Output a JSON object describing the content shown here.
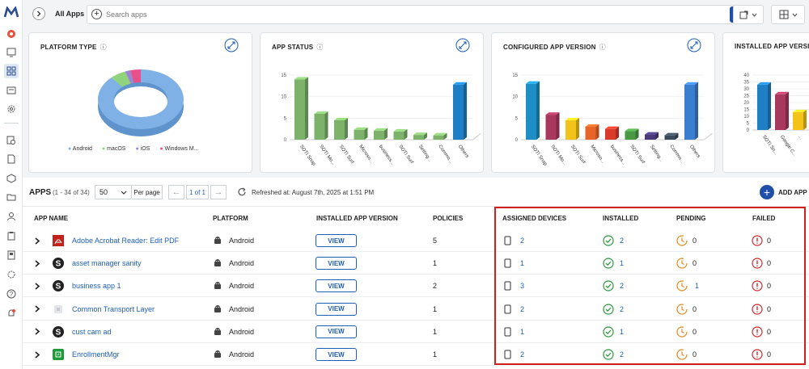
{
  "toolbar": {
    "all_apps": "All Apps",
    "search_placeholder": "Search apps"
  },
  "cards": [
    {
      "title": "PLATFORM TYPE",
      "legend": [
        {
          "label": "Android",
          "color": "#7fb1e6"
        },
        {
          "label": "macOS",
          "color": "#8fd47a"
        },
        {
          "label": "iOS",
          "color": "#9a86d6"
        },
        {
          "label": "Windows M...",
          "color": "#e8508a"
        }
      ]
    },
    {
      "title": "APP STATUS"
    },
    {
      "title": "CONFIGURED APP VERSION"
    },
    {
      "title": "INSTALLED APP VERSION"
    }
  ],
  "chart_data": [
    {
      "type": "pie",
      "title": "PLATFORM TYPE",
      "categories": [
        "Android",
        "macOS",
        "iOS",
        "Windows M..."
      ],
      "values": [
        88,
        6,
        2,
        4
      ],
      "colors": [
        "#7fb1e6",
        "#8fd47a",
        "#9a86d6",
        "#e8508a"
      ]
    },
    {
      "type": "bar",
      "title": "APP STATUS",
      "ylim": [
        0,
        15
      ],
      "yticks": [
        0,
        5,
        10,
        15
      ],
      "categories": [
        "SOTI Snap",
        "SOTI Mo...",
        "SOTI Surf",
        "Microso...",
        "business...",
        "SOTI Surf",
        "Setting...",
        "Commo...",
        "Others"
      ],
      "values": [
        14,
        6,
        4.5,
        2.3,
        2.1,
        1.9,
        1.1,
        1,
        12.8
      ],
      "colors": [
        "#7db26a",
        "#7db26a",
        "#7db26a",
        "#7db26a",
        "#7db26a",
        "#7db26a",
        "#7db26a",
        "#7db26a",
        "#1e7fc4"
      ]
    },
    {
      "type": "bar",
      "title": "CONFIGURED APP VERSION",
      "ylim": [
        0,
        15
      ],
      "yticks": [
        0,
        5,
        10,
        15
      ],
      "categories": [
        "SOTI Snap",
        "SOTI Mo...",
        "SOTI Surf",
        "Microso...",
        "business...",
        "SOTI Surf",
        "Setting...",
        "Commo...",
        "Others"
      ],
      "values": [
        13,
        5.8,
        4.5,
        3,
        2.5,
        2,
        1.2,
        1,
        12.8
      ],
      "colors": [
        "#1e8fc4",
        "#a8385e",
        "#f4c31a",
        "#e8652a",
        "#d93a2a",
        "#4a9a45",
        "#4a3a7a",
        "#3a4a5a",
        "#3a7ed0"
      ]
    },
    {
      "type": "bar",
      "title": "INSTALLED APP VERSION",
      "ylim": [
        0,
        40
      ],
      "yticks": [
        0,
        5,
        10,
        15,
        20,
        25,
        30,
        35,
        40
      ],
      "categories": [
        "SOTI Sn...",
        "Google C...",
        "..."
      ],
      "values": [
        33,
        26,
        13
      ],
      "colors": [
        "#1e7fc4",
        "#a8385e",
        "#f4c31a"
      ]
    }
  ],
  "apps": {
    "title": "APPS",
    "count": "(1 - 34 of 34)",
    "page_size": "50",
    "per_page": "Per page",
    "page_of": "1 of 1",
    "refreshed": "Refreshed at: August 7th, 2025 at 1:51 PM",
    "add_app": "ADD APP",
    "columns": [
      "APP NAME",
      "PLATFORM",
      "INSTALLED APP VERSION",
      "POLICIES",
      "ASSIGNED DEVICES",
      "INSTALLED",
      "PENDING",
      "FAILED"
    ],
    "view_label": "VIEW",
    "rows": [
      {
        "name": "Adobe Acrobat Reader: Edit PDF",
        "platform": "Android",
        "policies": "5",
        "assigned": "2",
        "installed": "2",
        "pending": "0",
        "failed": "0"
      },
      {
        "name": "asset manager sanity",
        "platform": "Android",
        "policies": "1",
        "assigned": "1",
        "installed": "1",
        "pending": "0",
        "failed": "0"
      },
      {
        "name": "business app 1",
        "platform": "Android",
        "policies": "2",
        "assigned": "3",
        "installed": "2",
        "pending": "1",
        "failed": "0"
      },
      {
        "name": "Common Transport Layer",
        "platform": "Android",
        "policies": "1",
        "assigned": "2",
        "installed": "2",
        "pending": "0",
        "failed": "0"
      },
      {
        "name": "cust cam ad",
        "platform": "Android",
        "policies": "1",
        "assigned": "1",
        "installed": "1",
        "pending": "0",
        "failed": "0"
      },
      {
        "name": "EnrollmentMgr",
        "platform": "Android",
        "policies": "1",
        "assigned": "2",
        "installed": "2",
        "pending": "0",
        "failed": "0"
      }
    ]
  }
}
